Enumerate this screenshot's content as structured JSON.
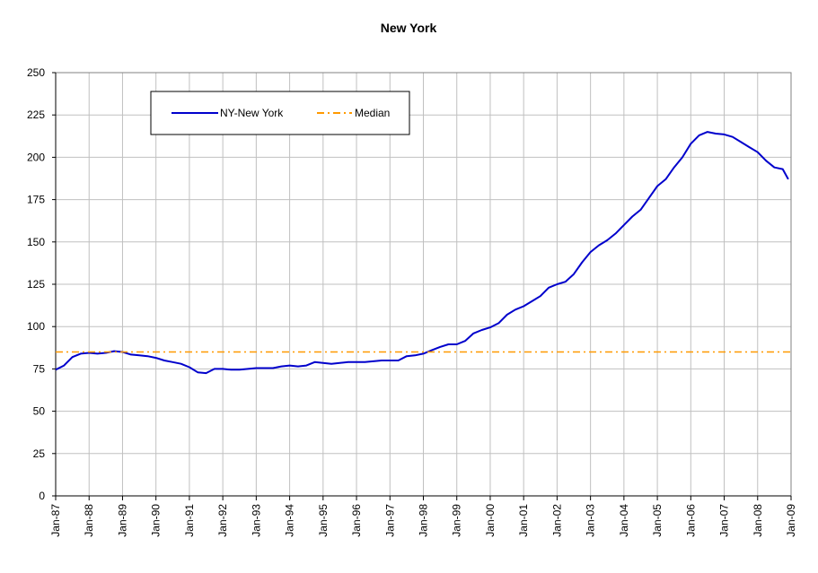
{
  "chart_data": {
    "type": "line",
    "title": "New York",
    "xlabel": "",
    "ylabel": "",
    "x_range": [
      "Jan-87",
      "Jan-09"
    ],
    "ylim": [
      0,
      250
    ],
    "y_ticks": [
      0,
      25,
      50,
      75,
      100,
      125,
      150,
      175,
      200,
      225,
      250
    ],
    "x_ticks": [
      "Jan-87",
      "Jan-88",
      "Jan-89",
      "Jan-90",
      "Jan-91",
      "Jan-92",
      "Jan-93",
      "Jan-94",
      "Jan-95",
      "Jan-96",
      "Jan-97",
      "Jan-98",
      "Jan-99",
      "Jan-00",
      "Jan-01",
      "Jan-02",
      "Jan-03",
      "Jan-04",
      "Jan-05",
      "Jan-06",
      "Jan-07",
      "Jan-08",
      "Jan-09"
    ],
    "grid": "vertical and horizontal",
    "legend_position": "top-left",
    "series": [
      {
        "name": "NY-New York",
        "color": "#0000CC",
        "style": "solid",
        "points": [
          [
            "1987-01",
            74.5
          ],
          [
            "1987-04",
            77
          ],
          [
            "1987-07",
            82
          ],
          [
            "1987-10",
            84
          ],
          [
            "1988-01",
            84.5
          ],
          [
            "1988-04",
            84
          ],
          [
            "1988-07",
            84.5
          ],
          [
            "1988-10",
            85.5
          ],
          [
            "1989-01",
            85
          ],
          [
            "1989-04",
            83.5
          ],
          [
            "1989-07",
            83
          ],
          [
            "1989-10",
            82.5
          ],
          [
            "1990-01",
            81.5
          ],
          [
            "1990-04",
            80
          ],
          [
            "1990-07",
            79
          ],
          [
            "1990-10",
            78
          ],
          [
            "1991-01",
            76
          ],
          [
            "1991-04",
            73
          ],
          [
            "1991-07",
            72.5
          ],
          [
            "1991-10",
            75
          ],
          [
            "1992-01",
            75
          ],
          [
            "1992-04",
            74.5
          ],
          [
            "1992-07",
            74.5
          ],
          [
            "1992-10",
            75
          ],
          [
            "1993-01",
            75.5
          ],
          [
            "1993-04",
            75.5
          ],
          [
            "1993-07",
            75.5
          ],
          [
            "1993-10",
            76.5
          ],
          [
            "1994-01",
            77
          ],
          [
            "1994-04",
            76.5
          ],
          [
            "1994-07",
            77
          ],
          [
            "1994-10",
            79
          ],
          [
            "1995-01",
            78.5
          ],
          [
            "1995-04",
            78
          ],
          [
            "1995-07",
            78.5
          ],
          [
            "1995-10",
            79
          ],
          [
            "1996-01",
            79
          ],
          [
            "1996-04",
            79
          ],
          [
            "1996-07",
            79.5
          ],
          [
            "1996-10",
            80
          ],
          [
            "1997-01",
            80
          ],
          [
            "1997-04",
            80
          ],
          [
            "1997-07",
            82.5
          ],
          [
            "1997-10",
            83
          ],
          [
            "1998-01",
            84
          ],
          [
            "1998-04",
            86
          ],
          [
            "1998-07",
            88
          ],
          [
            "1998-10",
            89.5
          ],
          [
            "1999-01",
            89.5
          ],
          [
            "1999-04",
            91.5
          ],
          [
            "1999-07",
            96
          ],
          [
            "1999-10",
            98
          ],
          [
            "2000-01",
            99.5
          ],
          [
            "2000-04",
            102
          ],
          [
            "2000-07",
            107
          ],
          [
            "2000-10",
            110
          ],
          [
            "2001-01",
            112
          ],
          [
            "2001-04",
            115
          ],
          [
            "2001-07",
            118
          ],
          [
            "2001-10",
            123
          ],
          [
            "2002-01",
            125
          ],
          [
            "2002-04",
            126.5
          ],
          [
            "2002-07",
            131
          ],
          [
            "2002-10",
            138
          ],
          [
            "2003-01",
            144
          ],
          [
            "2003-04",
            148
          ],
          [
            "2003-07",
            151
          ],
          [
            "2003-10",
            155
          ],
          [
            "2004-01",
            160
          ],
          [
            "2004-04",
            165
          ],
          [
            "2004-07",
            169
          ],
          [
            "2004-10",
            176
          ],
          [
            "2005-01",
            183
          ],
          [
            "2005-04",
            187
          ],
          [
            "2005-07",
            194
          ],
          [
            "2005-10",
            200
          ],
          [
            "2006-01",
            208
          ],
          [
            "2006-04",
            213
          ],
          [
            "2006-07",
            215
          ],
          [
            "2006-10",
            214
          ],
          [
            "2007-01",
            213.5
          ],
          [
            "2007-04",
            212
          ],
          [
            "2007-07",
            209
          ],
          [
            "2007-10",
            206
          ],
          [
            "2008-01",
            203
          ],
          [
            "2008-04",
            198
          ],
          [
            "2008-07",
            194
          ],
          [
            "2008-10",
            193
          ],
          [
            "2008-12",
            187
          ]
        ]
      },
      {
        "name": "Median",
        "color": "#FF9900",
        "style": "dash-dot",
        "points": [
          [
            "1987-01",
            85
          ],
          [
            "2009-01",
            85
          ]
        ]
      }
    ]
  }
}
